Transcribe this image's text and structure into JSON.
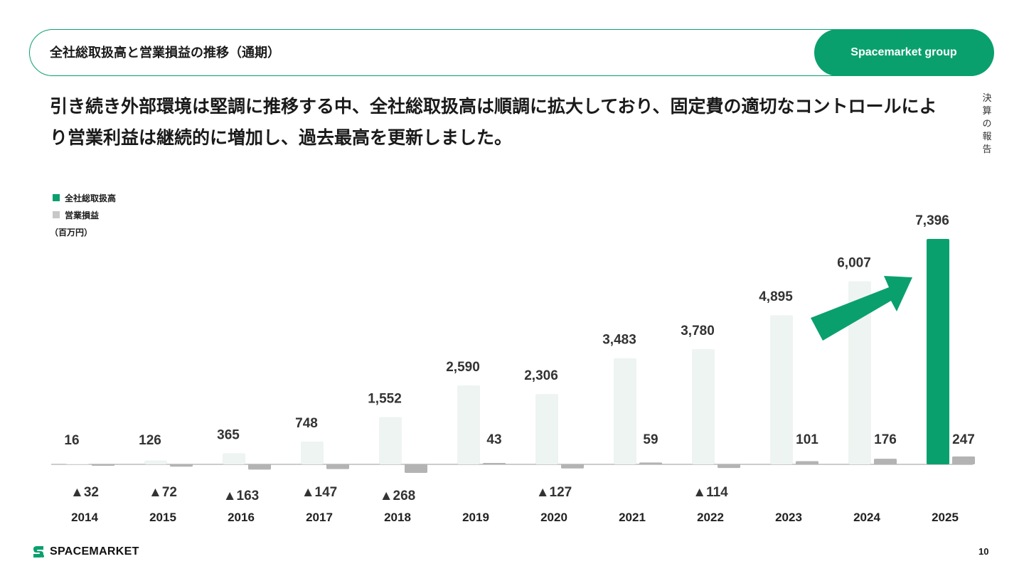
{
  "header": {
    "title": "全社総取扱高と営業損益の推移（通期）",
    "brand": "Spacemarket group"
  },
  "headline": "引き続き外部環境は堅調に推移する中、全社総取扱高は順調に拡大しており、固定費の適切なコントロールにより営業利益は継続的に増加し、過去最高を更新しました。",
  "side_nav": [
    "決",
    "算",
    "の",
    "報",
    "告"
  ],
  "legend": [
    {
      "label": "全社総取扱高",
      "color": "#0aa06e"
    },
    {
      "label": "営業損益",
      "color": "#c8c8c8"
    }
  ],
  "unit": "（百万円）",
  "footer": {
    "logo": "SPACEMARKET",
    "page": "10"
  },
  "colors": {
    "accent": "#0aa06e",
    "gmv_light": "#eef4f1",
    "profit": "#b3b3b3"
  },
  "chart_data": {
    "type": "bar",
    "categories": [
      "2014",
      "2015",
      "2016",
      "2017",
      "2018",
      "2019",
      "2020",
      "2021",
      "2022",
      "2023",
      "2024",
      "2025"
    ],
    "series": [
      {
        "name": "全社総取扱高",
        "values": [
          16,
          126,
          365,
          748,
          1552,
          2590,
          2306,
          3483,
          3780,
          4895,
          6007,
          7396
        ],
        "labels": [
          "16",
          "126",
          "365",
          "748",
          "1,552",
          "2,590",
          "2,306",
          "3,483",
          "3,780",
          "4,895",
          "6,007",
          "7,396"
        ]
      },
      {
        "name": "営業損益",
        "values": [
          -32,
          -72,
          -163,
          -147,
          -268,
          43,
          -127,
          59,
          -114,
          101,
          176,
          247
        ],
        "labels": [
          "▲32",
          "▲72",
          "▲163",
          "▲147",
          "▲268",
          "43",
          "▲127",
          "59",
          "▲114",
          "101",
          "176",
          "247"
        ]
      }
    ],
    "highlight_category": "2025"
  }
}
